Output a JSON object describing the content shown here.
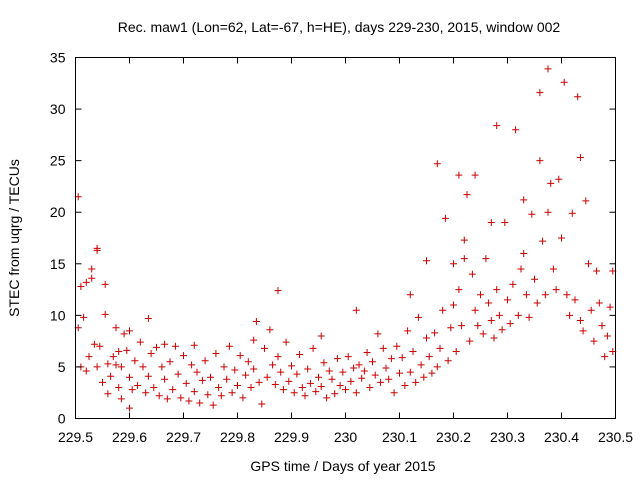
{
  "chart_data": {
    "type": "scatter",
    "title": "Rec. maw1 (Lon=62, Lat=-67, h=HE), days 229-230, 2015, window 002",
    "xlabel": "GPS time / Days of year 2015",
    "ylabel": "STEC from uqrg / TECUs",
    "xlim": [
      229.5,
      230.5
    ],
    "ylim": [
      0,
      35
    ],
    "xticks": [
      "229.5",
      "229.6",
      "229.7",
      "229.8",
      "229.9",
      "230",
      "230.1",
      "230.2",
      "230.3",
      "230.4",
      "230.5"
    ],
    "yticks": [
      "0",
      "5",
      "10",
      "15",
      "20",
      "25",
      "30",
      "35"
    ],
    "grid": false,
    "legend": "none",
    "marker": "plus",
    "color": "#cc0000",
    "series": [
      {
        "points": [
          [
            229.505,
            21.5
          ],
          [
            229.505,
            8.8
          ],
          [
            229.51,
            5.0
          ],
          [
            229.51,
            12.8
          ],
          [
            229.515,
            9.8
          ],
          [
            229.52,
            13.2
          ],
          [
            229.52,
            4.6
          ],
          [
            229.525,
            6.0
          ],
          [
            229.53,
            13.6
          ],
          [
            229.53,
            14.5
          ],
          [
            229.535,
            7.2
          ],
          [
            229.54,
            16.3
          ],
          [
            229.54,
            16.5
          ],
          [
            229.54,
            5.0
          ],
          [
            229.545,
            7.0
          ],
          [
            229.55,
            3.5
          ],
          [
            229.555,
            10.1
          ],
          [
            229.555,
            13.0
          ],
          [
            229.56,
            5.3
          ],
          [
            229.56,
            2.4
          ],
          [
            229.565,
            4.1
          ],
          [
            229.57,
            6.0
          ],
          [
            229.575,
            8.8
          ],
          [
            229.575,
            5.2
          ],
          [
            229.58,
            6.5
          ],
          [
            229.58,
            3.0
          ],
          [
            229.585,
            5.0
          ],
          [
            229.585,
            1.9
          ],
          [
            229.59,
            8.2
          ],
          [
            229.595,
            6.6
          ],
          [
            229.6,
            1.0
          ],
          [
            229.6,
            4.0
          ],
          [
            229.6,
            8.5
          ],
          [
            229.605,
            2.8
          ],
          [
            229.61,
            5.6
          ],
          [
            229.615,
            3.2
          ],
          [
            229.62,
            7.4
          ],
          [
            229.625,
            5.0
          ],
          [
            229.63,
            2.5
          ],
          [
            229.635,
            9.7
          ],
          [
            229.635,
            4.1
          ],
          [
            229.64,
            6.3
          ],
          [
            229.645,
            3.0
          ],
          [
            229.65,
            6.9
          ],
          [
            229.655,
            2.2
          ],
          [
            229.66,
            5.0
          ],
          [
            229.665,
            7.2
          ],
          [
            229.665,
            3.8
          ],
          [
            229.67,
            1.9
          ],
          [
            229.675,
            5.5
          ],
          [
            229.68,
            2.8
          ],
          [
            229.685,
            7.0
          ],
          [
            229.69,
            4.3
          ],
          [
            229.695,
            2.0
          ],
          [
            229.7,
            6.1
          ],
          [
            229.705,
            3.4
          ],
          [
            229.71,
            1.7
          ],
          [
            229.715,
            5.2
          ],
          [
            229.72,
            2.6
          ],
          [
            229.72,
            7.1
          ],
          [
            229.725,
            4.5
          ],
          [
            229.73,
            1.5
          ],
          [
            229.735,
            3.7
          ],
          [
            229.74,
            5.6
          ],
          [
            229.745,
            2.3
          ],
          [
            229.75,
            4.0
          ],
          [
            229.755,
            1.3
          ],
          [
            229.76,
            6.3
          ],
          [
            229.765,
            3.0
          ],
          [
            229.77,
            2.2
          ],
          [
            229.775,
            5.0
          ],
          [
            229.78,
            3.8
          ],
          [
            229.785,
            7.0
          ],
          [
            229.79,
            2.5
          ],
          [
            229.795,
            4.7
          ],
          [
            229.8,
            3.2
          ],
          [
            229.805,
            6.1
          ],
          [
            229.81,
            2.0
          ],
          [
            229.815,
            4.2
          ],
          [
            229.82,
            5.5
          ],
          [
            229.825,
            3.0
          ],
          [
            229.83,
            7.6
          ],
          [
            229.83,
            4.8
          ],
          [
            229.835,
            9.4
          ],
          [
            229.84,
            3.5
          ],
          [
            229.845,
            1.4
          ],
          [
            229.85,
            6.8
          ],
          [
            229.855,
            4.0
          ],
          [
            229.86,
            8.6
          ],
          [
            229.865,
            5.2
          ],
          [
            229.87,
            3.3
          ],
          [
            229.875,
            12.4
          ],
          [
            229.875,
            6.0
          ],
          [
            229.88,
            4.5
          ],
          [
            229.885,
            2.8
          ],
          [
            229.89,
            7.4
          ],
          [
            229.895,
            3.6
          ],
          [
            229.9,
            5.1
          ],
          [
            229.905,
            2.5
          ],
          [
            229.91,
            4.3
          ],
          [
            229.915,
            6.2
          ],
          [
            229.92,
            3.0
          ],
          [
            229.925,
            2.2
          ],
          [
            229.93,
            4.8
          ],
          [
            229.935,
            3.4
          ],
          [
            229.94,
            6.8
          ],
          [
            229.945,
            2.6
          ],
          [
            229.95,
            4.0
          ],
          [
            229.955,
            8.0
          ],
          [
            229.955,
            3.1
          ],
          [
            229.96,
            5.4
          ],
          [
            229.965,
            2.0
          ],
          [
            229.97,
            4.6
          ],
          [
            229.975,
            3.8
          ],
          [
            229.98,
            2.4
          ],
          [
            229.985,
            5.8
          ],
          [
            229.99,
            3.2
          ],
          [
            229.995,
            4.5
          ],
          [
            230.0,
            2.8
          ],
          [
            230.005,
            6.0
          ],
          [
            230.01,
            3.6
          ],
          [
            230.015,
            4.9
          ],
          [
            230.02,
            10.5
          ],
          [
            230.02,
            2.5
          ],
          [
            230.025,
            5.2
          ],
          [
            230.03,
            3.9
          ],
          [
            230.035,
            4.6
          ],
          [
            230.04,
            6.4
          ],
          [
            230.045,
            3.0
          ],
          [
            230.05,
            5.5
          ],
          [
            230.055,
            4.2
          ],
          [
            230.06,
            8.2
          ],
          [
            230.065,
            3.5
          ],
          [
            230.07,
            6.8
          ],
          [
            230.075,
            4.9
          ],
          [
            230.08,
            3.8
          ],
          [
            230.085,
            5.8
          ],
          [
            230.09,
            2.5
          ],
          [
            230.095,
            7.0
          ],
          [
            230.1,
            4.4
          ],
          [
            230.105,
            5.9
          ],
          [
            230.11,
            3.2
          ],
          [
            230.115,
            8.5
          ],
          [
            230.12,
            12.0
          ],
          [
            230.12,
            4.5
          ],
          [
            230.125,
            6.5
          ],
          [
            230.13,
            3.5
          ],
          [
            230.135,
            9.8
          ],
          [
            230.14,
            5.2
          ],
          [
            230.145,
            4.0
          ],
          [
            230.15,
            15.3
          ],
          [
            230.15,
            7.8
          ],
          [
            230.155,
            6.0
          ],
          [
            230.16,
            4.4
          ],
          [
            230.165,
            8.3
          ],
          [
            230.17,
            24.7
          ],
          [
            230.17,
            5.0
          ],
          [
            230.175,
            6.8
          ],
          [
            230.18,
            10.5
          ],
          [
            230.185,
            19.4
          ],
          [
            230.19,
            5.6
          ],
          [
            230.195,
            8.8
          ],
          [
            230.2,
            15.0
          ],
          [
            230.2,
            11.0
          ],
          [
            230.205,
            6.5
          ],
          [
            230.21,
            23.6
          ],
          [
            230.21,
            12.5
          ],
          [
            230.215,
            9.0
          ],
          [
            230.22,
            15.5
          ],
          [
            230.22,
            17.3
          ],
          [
            230.225,
            21.7
          ],
          [
            230.23,
            7.5
          ],
          [
            230.235,
            14.0
          ],
          [
            230.24,
            23.6
          ],
          [
            230.24,
            10.5
          ],
          [
            230.245,
            9.0
          ],
          [
            230.25,
            12.0
          ],
          [
            230.255,
            8.2
          ],
          [
            230.26,
            15.5
          ],
          [
            230.265,
            11.2
          ],
          [
            230.27,
            19.0
          ],
          [
            230.27,
            9.5
          ],
          [
            230.275,
            7.8
          ],
          [
            230.28,
            28.4
          ],
          [
            230.28,
            12.5
          ],
          [
            230.285,
            10.0
          ],
          [
            230.29,
            8.6
          ],
          [
            230.295,
            19.0
          ],
          [
            230.3,
            11.5
          ],
          [
            230.305,
            9.2
          ],
          [
            230.31,
            13.0
          ],
          [
            230.315,
            28.0
          ],
          [
            230.32,
            10.0
          ],
          [
            230.325,
            14.5
          ],
          [
            230.33,
            16.0
          ],
          [
            230.33,
            21.2
          ],
          [
            230.335,
            12.0
          ],
          [
            230.34,
            9.8
          ],
          [
            230.345,
            19.8
          ],
          [
            230.35,
            13.5
          ],
          [
            230.355,
            11.2
          ],
          [
            230.36,
            25.0
          ],
          [
            230.36,
            31.6
          ],
          [
            230.365,
            17.2
          ],
          [
            230.37,
            12.0
          ],
          [
            230.375,
            33.9
          ],
          [
            230.375,
            20.0
          ],
          [
            230.38,
            22.8
          ],
          [
            230.385,
            14.5
          ],
          [
            230.39,
            12.5
          ],
          [
            230.395,
            23.2
          ],
          [
            230.4,
            17.5
          ],
          [
            230.405,
            32.6
          ],
          [
            230.41,
            12.0
          ],
          [
            230.415,
            10.0
          ],
          [
            230.42,
            19.9
          ],
          [
            230.425,
            11.5
          ],
          [
            230.43,
            31.2
          ],
          [
            230.435,
            25.3
          ],
          [
            230.435,
            9.5
          ],
          [
            230.44,
            8.5
          ],
          [
            230.445,
            21.1
          ],
          [
            230.45,
            15.0
          ],
          [
            230.455,
            10.5
          ],
          [
            230.46,
            7.5
          ],
          [
            230.465,
            14.3
          ],
          [
            230.47,
            11.2
          ],
          [
            230.475,
            9.0
          ],
          [
            230.48,
            6.0
          ],
          [
            230.485,
            8.0
          ],
          [
            230.49,
            10.8
          ],
          [
            230.495,
            14.3
          ],
          [
            230.495,
            6.5
          ]
        ]
      }
    ]
  }
}
